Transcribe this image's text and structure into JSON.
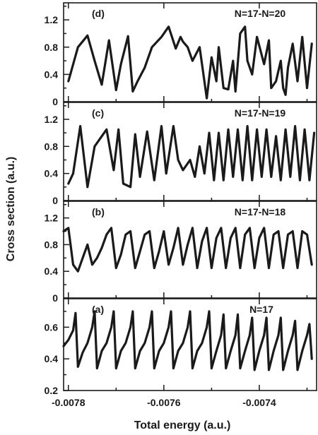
{
  "figure": {
    "ylabel": "Cross section (a.u.)",
    "xlabel": "Total energy (a.u.)"
  },
  "chart_data": [
    {
      "type": "line",
      "panel": "(d)",
      "title": "N=17-N=20",
      "xlim": [
        -0.00781,
        -0.00728
      ],
      "ylim": [
        0,
        1.45
      ],
      "yticks": [
        0,
        0.4,
        0.8,
        1.2
      ],
      "yticklabels": [
        "0",
        "0.4",
        "0.8",
        "1.2"
      ],
      "series": [
        {
          "x": [
            -0.0078,
            -0.00778,
            -0.00776,
            -0.007745,
            -0.00773,
            -0.007715,
            -0.0077,
            -0.00769,
            -0.007675,
            -0.007665,
            -0.007655,
            -0.00764,
            -0.007625,
            -0.007605,
            -0.00759,
            -0.007575,
            -0.007565,
            -0.00756,
            -0.00755,
            -0.00754,
            -0.007525,
            -0.00751,
            -0.0075,
            -0.00749,
            -0.007485,
            -0.007475,
            -0.007465,
            -0.007455,
            -0.00745,
            -0.00744,
            -0.00743,
            -0.007425,
            -0.007415,
            -0.007405,
            -0.0074,
            -0.00739,
            -0.00738,
            -0.007375,
            -0.007365,
            -0.007355,
            -0.00735,
            -0.007345,
            -0.00734,
            -0.00733,
            -0.00732,
            -0.00731,
            -0.0073,
            -0.00729
          ],
          "y": [
            0.3,
            0.8,
            0.97,
            0.6,
            0.25,
            0.9,
            0.17,
            0.55,
            0.96,
            0.15,
            0.3,
            0.5,
            0.8,
            0.95,
            1.1,
            0.78,
            0.95,
            0.88,
            0.8,
            0.6,
            0.8,
            0.05,
            0.65,
            0.3,
            0.8,
            0.2,
            0.18,
            0.6,
            0.15,
            1.0,
            1.1,
            0.6,
            0.4,
            0.95,
            0.82,
            0.55,
            0.9,
            0.2,
            0.3,
            0.6,
            0.2,
            0.1,
            0.5,
            0.85,
            0.3,
            0.95,
            0.2,
            0.85
          ]
        }
      ]
    },
    {
      "type": "line",
      "panel": "(c)",
      "title": "N=17-N=19",
      "xlim": [
        -0.00781,
        -0.00728
      ],
      "ylim": [
        0,
        1.45
      ],
      "yticks": [
        0,
        0.4,
        0.8,
        1.2
      ],
      "yticklabels": [
        "0",
        "0.4",
        "0.8",
        "1.2"
      ],
      "series": [
        {
          "x": [
            -0.0078,
            -0.00779,
            -0.007775,
            -0.00776,
            -0.007745,
            -0.00773,
            -0.00772,
            -0.007705,
            -0.007695,
            -0.007685,
            -0.00767,
            -0.00766,
            -0.00765,
            -0.007635,
            -0.00762,
            -0.007605,
            -0.007595,
            -0.00758,
            -0.00757,
            -0.00756,
            -0.007545,
            -0.007535,
            -0.007525,
            -0.007515,
            -0.007505,
            -0.007495,
            -0.007485,
            -0.007475,
            -0.007465,
            -0.007455,
            -0.007445,
            -0.007435,
            -0.007425,
            -0.007415,
            -0.007405,
            -0.007395,
            -0.007385,
            -0.007375,
            -0.007365,
            -0.007355,
            -0.007345,
            -0.007335,
            -0.007325,
            -0.007315,
            -0.007305,
            -0.007295,
            -0.007285
          ],
          "y": [
            0.25,
            0.4,
            1.1,
            0.2,
            0.8,
            0.95,
            1.05,
            0.45,
            1.05,
            0.25,
            0.2,
            0.98,
            0.35,
            1.02,
            0.3,
            1.1,
            0.4,
            1.1,
            0.6,
            0.45,
            0.6,
            0.35,
            0.8,
            0.4,
            1.0,
            0.3,
            1.0,
            0.3,
            1.05,
            0.35,
            1.05,
            0.3,
            1.1,
            0.3,
            1.05,
            0.35,
            1.05,
            0.35,
            0.95,
            0.3,
            1.05,
            0.35,
            1.1,
            0.3,
            1.05,
            0.3,
            1.0
          ]
        }
      ]
    },
    {
      "type": "line",
      "panel": "(b)",
      "title": "N=17-N=18",
      "xlim": [
        -0.00781,
        -0.00728
      ],
      "ylim": [
        0,
        1.45
      ],
      "yticks": [
        0,
        0.4,
        0.8,
        1.2
      ],
      "yticklabels": [
        "0",
        "0.4",
        "0.8",
        "1.2"
      ],
      "series": [
        {
          "x": [
            -0.00781,
            -0.0078,
            -0.00779,
            -0.00778,
            -0.00777,
            -0.00776,
            -0.00775,
            -0.00774,
            -0.00773,
            -0.00772,
            -0.00771,
            -0.0077,
            -0.00769,
            -0.00768,
            -0.00767,
            -0.00766,
            -0.00765,
            -0.00764,
            -0.00763,
            -0.00762,
            -0.00761,
            -0.0076,
            -0.00759,
            -0.00758,
            -0.00757,
            -0.00756,
            -0.00755,
            -0.00754,
            -0.00753,
            -0.00752,
            -0.00751,
            -0.0075,
            -0.00749,
            -0.00748,
            -0.00747,
            -0.00746,
            -0.00745,
            -0.00744,
            -0.00743,
            -0.00742,
            -0.00741,
            -0.0074,
            -0.00739,
            -0.00738,
            -0.00737,
            -0.00736,
            -0.00735,
            -0.00734,
            -0.00733,
            -0.00732,
            -0.00731,
            -0.0073,
            -0.00729
          ],
          "y": [
            1.0,
            1.05,
            0.5,
            0.4,
            0.6,
            0.8,
            0.5,
            0.6,
            0.75,
            0.95,
            1.05,
            0.45,
            0.65,
            0.95,
            1.0,
            0.45,
            0.7,
            0.95,
            1.0,
            0.45,
            0.7,
            1.0,
            0.5,
            0.75,
            1.05,
            0.5,
            0.8,
            1.05,
            0.45,
            0.85,
            1.05,
            0.45,
            0.9,
            1.05,
            0.45,
            0.9,
            1.05,
            0.45,
            0.95,
            1.05,
            0.45,
            0.9,
            1.05,
            0.45,
            0.95,
            1.0,
            0.45,
            0.95,
            1.0,
            0.45,
            1.0,
            0.95,
            0.5
          ]
        }
      ]
    },
    {
      "type": "line",
      "panel": "(a)",
      "title": "N=17",
      "xlim": [
        -0.00781,
        -0.00728
      ],
      "ylim": [
        0.2,
        0.78
      ],
      "yticks": [
        0.2,
        0.4,
        0.6
      ],
      "yticklabels": [
        "0.2",
        "0.4",
        "0.6"
      ],
      "series": [
        {
          "x": [
            -0.00781,
            -0.0078,
            -0.00779,
            -0.007785,
            -0.00778,
            -0.00777,
            -0.00776,
            -0.00775,
            -0.007745,
            -0.00774,
            -0.00773,
            -0.00772,
            -0.00771,
            -0.007705,
            -0.0077,
            -0.00769,
            -0.00768,
            -0.00767,
            -0.007665,
            -0.00766,
            -0.00765,
            -0.00764,
            -0.00763,
            -0.007625,
            -0.00762,
            -0.00761,
            -0.0076,
            -0.00759,
            -0.007585,
            -0.00758,
            -0.00757,
            -0.00756,
            -0.00755,
            -0.007545,
            -0.00754,
            -0.00753,
            -0.00752,
            -0.00751,
            -0.007505,
            -0.0075,
            -0.00749,
            -0.00748,
            -0.007475,
            -0.00747,
            -0.00746,
            -0.00745,
            -0.007445,
            -0.00744,
            -0.00743,
            -0.00742,
            -0.007415,
            -0.00741,
            -0.0074,
            -0.00739,
            -0.007385,
            -0.00738,
            -0.00737,
            -0.00736,
            -0.007355,
            -0.00735,
            -0.00734,
            -0.00733,
            -0.007325,
            -0.00732,
            -0.00731,
            -0.0073,
            -0.007295,
            -0.00729
          ],
          "y": [
            0.48,
            0.52,
            0.58,
            0.69,
            0.35,
            0.44,
            0.5,
            0.6,
            0.7,
            0.34,
            0.45,
            0.5,
            0.6,
            0.7,
            0.34,
            0.45,
            0.5,
            0.6,
            0.7,
            0.34,
            0.45,
            0.5,
            0.6,
            0.7,
            0.34,
            0.45,
            0.5,
            0.6,
            0.7,
            0.34,
            0.45,
            0.5,
            0.6,
            0.7,
            0.34,
            0.45,
            0.5,
            0.6,
            0.7,
            0.34,
            0.45,
            0.55,
            0.68,
            0.34,
            0.45,
            0.55,
            0.68,
            0.34,
            0.45,
            0.55,
            0.66,
            0.33,
            0.45,
            0.55,
            0.66,
            0.33,
            0.45,
            0.55,
            0.66,
            0.33,
            0.45,
            0.55,
            0.64,
            0.33,
            0.45,
            0.55,
            0.62,
            0.4
          ]
        }
      ]
    }
  ],
  "xaxis": {
    "ticks": [
      -0.0078,
      -0.0076,
      -0.0074
    ],
    "ticklabels": [
      "-0.0078",
      "-0.0076",
      "-0.0074"
    ]
  }
}
